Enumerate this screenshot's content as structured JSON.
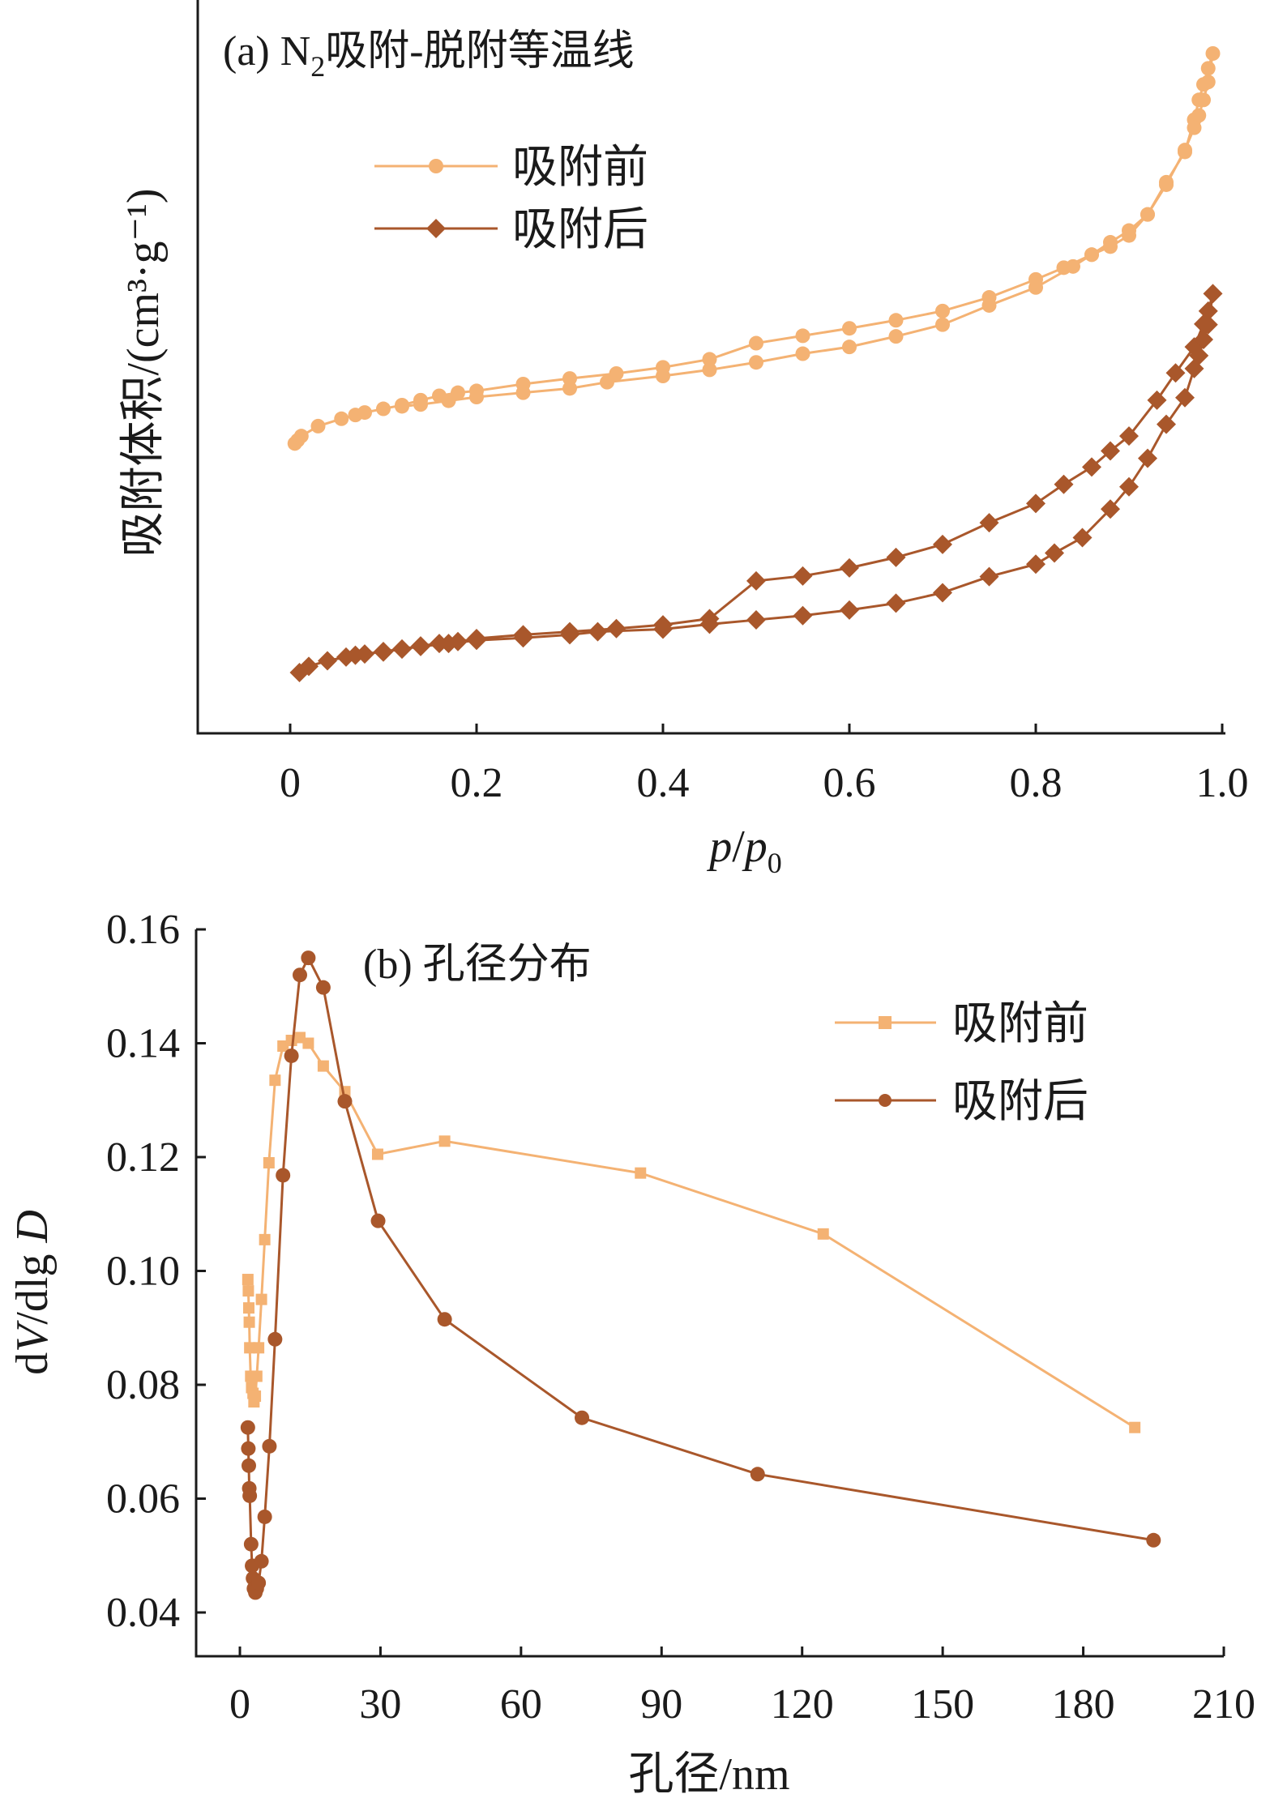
{
  "colors": {
    "before": "#f4b273",
    "after": "#a9572b",
    "axis": "#1a1a1a"
  },
  "chart_data": [
    {
      "type": "line",
      "panel": "a",
      "title_prefix": "(a)  N",
      "title_sub": "2",
      "title_suffix": "吸附-脱附等温线",
      "xlabel_italic_1": "p",
      "xlabel_sep": "/",
      "xlabel_italic_2": "p",
      "xlabel_sub": "0",
      "ylabel": "吸附体积/(cm³·g⁻¹)",
      "xlim": [
        -0.1,
        1.0
      ],
      "xticks": [
        0,
        0.2,
        0.4,
        0.6,
        0.8,
        1.0
      ],
      "xtick_labels": [
        "0",
        "0.2",
        "0.4",
        "0.6",
        "0.8",
        "1.0"
      ],
      "ylim": [
        0,
        100
      ],
      "yticks_shown": false,
      "legend_position": "upper-left",
      "series": [
        {
          "name": "吸附前",
          "marker": "circle",
          "color_key": "before",
          "x": [
            0.005,
            0.008,
            0.012,
            0.03,
            0.055,
            0.07,
            0.08,
            0.1,
            0.12,
            0.14,
            0.16,
            0.18,
            0.2,
            0.25,
            0.3,
            0.35,
            0.4,
            0.45,
            0.5,
            0.55,
            0.6,
            0.65,
            0.7,
            0.75,
            0.8,
            0.83,
            0.86,
            0.88,
            0.9,
            0.92,
            0.94,
            0.96,
            0.97,
            0.975,
            0.98,
            0.985,
            0.99,
            0.985,
            0.98,
            0.975,
            0.97,
            0.96,
            0.94,
            0.92,
            0.9,
            0.88,
            0.86,
            0.84,
            0.8,
            0.75,
            0.7,
            0.65,
            0.6,
            0.55,
            0.5,
            0.45,
            0.4,
            0.34,
            0.3,
            0.25,
            0.2,
            0.17,
            0.14,
            0.12
          ],
          "y": [
            37.0,
            37.5,
            38.2,
            39.8,
            41.0,
            41.6,
            42.0,
            42.6,
            43.2,
            44.0,
            44.7,
            45.2,
            45.5,
            46.6,
            47.5,
            48.3,
            49.3,
            50.6,
            53.2,
            54.4,
            55.6,
            56.9,
            58.4,
            60.6,
            63.5,
            65.4,
            67.5,
            68.8,
            70.6,
            74.0,
            79.2,
            84.1,
            89.3,
            92.5,
            95.0,
            97.6,
            100.0,
            95.4,
            92.5,
            90.0,
            88.0,
            84.4,
            78.8,
            74.0,
            71.4,
            69.5,
            67.5,
            65.6,
            62.2,
            59.3,
            56.2,
            54.3,
            52.6,
            51.5,
            50.1,
            48.9,
            47.9,
            46.9,
            45.9,
            45.2,
            44.5,
            43.9,
            43.3,
            43.0
          ]
        },
        {
          "name": "吸附后",
          "marker": "diamond",
          "color_key": "after",
          "x": [
            0.01,
            0.02,
            0.04,
            0.06,
            0.07,
            0.08,
            0.1,
            0.12,
            0.14,
            0.16,
            0.18,
            0.2,
            0.25,
            0.3,
            0.35,
            0.4,
            0.45,
            0.5,
            0.55,
            0.6,
            0.65,
            0.7,
            0.75,
            0.8,
            0.83,
            0.86,
            0.88,
            0.9,
            0.93,
            0.95,
            0.97,
            0.98,
            0.985,
            0.99,
            0.985,
            0.98,
            0.975,
            0.97,
            0.96,
            0.94,
            0.92,
            0.9,
            0.88,
            0.85,
            0.82,
            0.8,
            0.75,
            0.7,
            0.65,
            0.6,
            0.55,
            0.5,
            0.45,
            0.4,
            0.33,
            0.3,
            0.25,
            0.2,
            0.17,
            0.14,
            0.12,
            0.1
          ],
          "y": [
            0.0,
            1.0,
            1.9,
            2.5,
            2.8,
            3.0,
            3.4,
            3.8,
            4.3,
            4.7,
            5.0,
            5.5,
            6.1,
            6.6,
            7.1,
            7.7,
            8.7,
            14.8,
            15.6,
            16.9,
            18.6,
            20.7,
            24.2,
            27.3,
            30.4,
            33.2,
            35.8,
            38.2,
            44.0,
            48.4,
            52.6,
            56.3,
            58.4,
            61.2,
            56.2,
            53.8,
            51.2,
            49.1,
            44.4,
            40.1,
            34.6,
            30.0,
            26.4,
            21.8,
            19.3,
            17.5,
            15.5,
            12.9,
            11.2,
            10.1,
            9.2,
            8.5,
            7.8,
            7.0,
            6.6,
            6.1,
            5.6,
            5.2,
            4.7,
            4.2,
            3.8,
            3.3
          ]
        }
      ]
    },
    {
      "type": "line",
      "panel": "b",
      "title": "(b)  孔径分布",
      "xlabel": "孔径/nm",
      "ylabel_prefix": "d",
      "ylabel_italic_1": "V",
      "ylabel_mid": "/dlg ",
      "ylabel_italic_2": "D",
      "xlim": [
        -5,
        210
      ],
      "xticks": [
        0,
        30,
        60,
        90,
        120,
        150,
        180,
        210
      ],
      "xtick_labels": [
        "0",
        "30",
        "60",
        "90",
        "120",
        "150",
        "180",
        "210"
      ],
      "ylim": [
        0.035,
        0.16
      ],
      "yticks": [
        0.04,
        0.06,
        0.08,
        0.1,
        0.12,
        0.14,
        0.16
      ],
      "ytick_labels": [
        "0.04",
        "0.06",
        "0.08",
        "0.10",
        "0.12",
        "0.14",
        "0.16"
      ],
      "legend_position": "upper-right",
      "series": [
        {
          "name": "吸附前",
          "marker": "square",
          "color_key": "before",
          "x": [
            1.7,
            1.8,
            1.9,
            2.0,
            2.1,
            2.3,
            2.5,
            2.8,
            3.0,
            3.3,
            3.6,
            4.0,
            4.6,
            5.3,
            6.2,
            7.5,
            9.2,
            11.0,
            12.8,
            14.6,
            17.8,
            22.4,
            29.4,
            43.7,
            85.5,
            124.5,
            191.0
          ],
          "x_note": "",
          "y": [
            0.0985,
            0.0965,
            0.0935,
            0.091,
            0.0865,
            0.0815,
            0.0795,
            0.0785,
            0.077,
            0.078,
            0.0815,
            0.0865,
            0.095,
            0.1055,
            0.119,
            0.1335,
            0.1395,
            0.1405,
            0.141,
            0.14,
            0.136,
            0.1315,
            0.1205,
            0.1228,
            0.1172,
            0.1065,
            0.0725
          ]
        },
        {
          "name": "吸附后",
          "marker": "circle",
          "color_key": "after",
          "x": [
            1.7,
            1.8,
            1.9,
            2.0,
            2.1,
            2.4,
            2.6,
            2.8,
            3.0,
            3.3,
            3.6,
            4.0,
            4.6,
            5.3,
            6.3,
            7.5,
            9.2,
            11.0,
            12.8,
            14.6,
            17.8,
            22.4,
            29.5,
            43.7,
            73.0,
            110.5,
            195.0
          ],
          "y": [
            0.0725,
            0.0688,
            0.0658,
            0.0618,
            0.0605,
            0.052,
            0.0482,
            0.046,
            0.0442,
            0.0435,
            0.0442,
            0.0452,
            0.049,
            0.0568,
            0.0692,
            0.088,
            0.1168,
            0.1378,
            0.152,
            0.155,
            0.1498,
            0.1298,
            0.1088,
            0.0915,
            0.0742,
            0.0643,
            0.0527
          ]
        }
      ]
    }
  ]
}
